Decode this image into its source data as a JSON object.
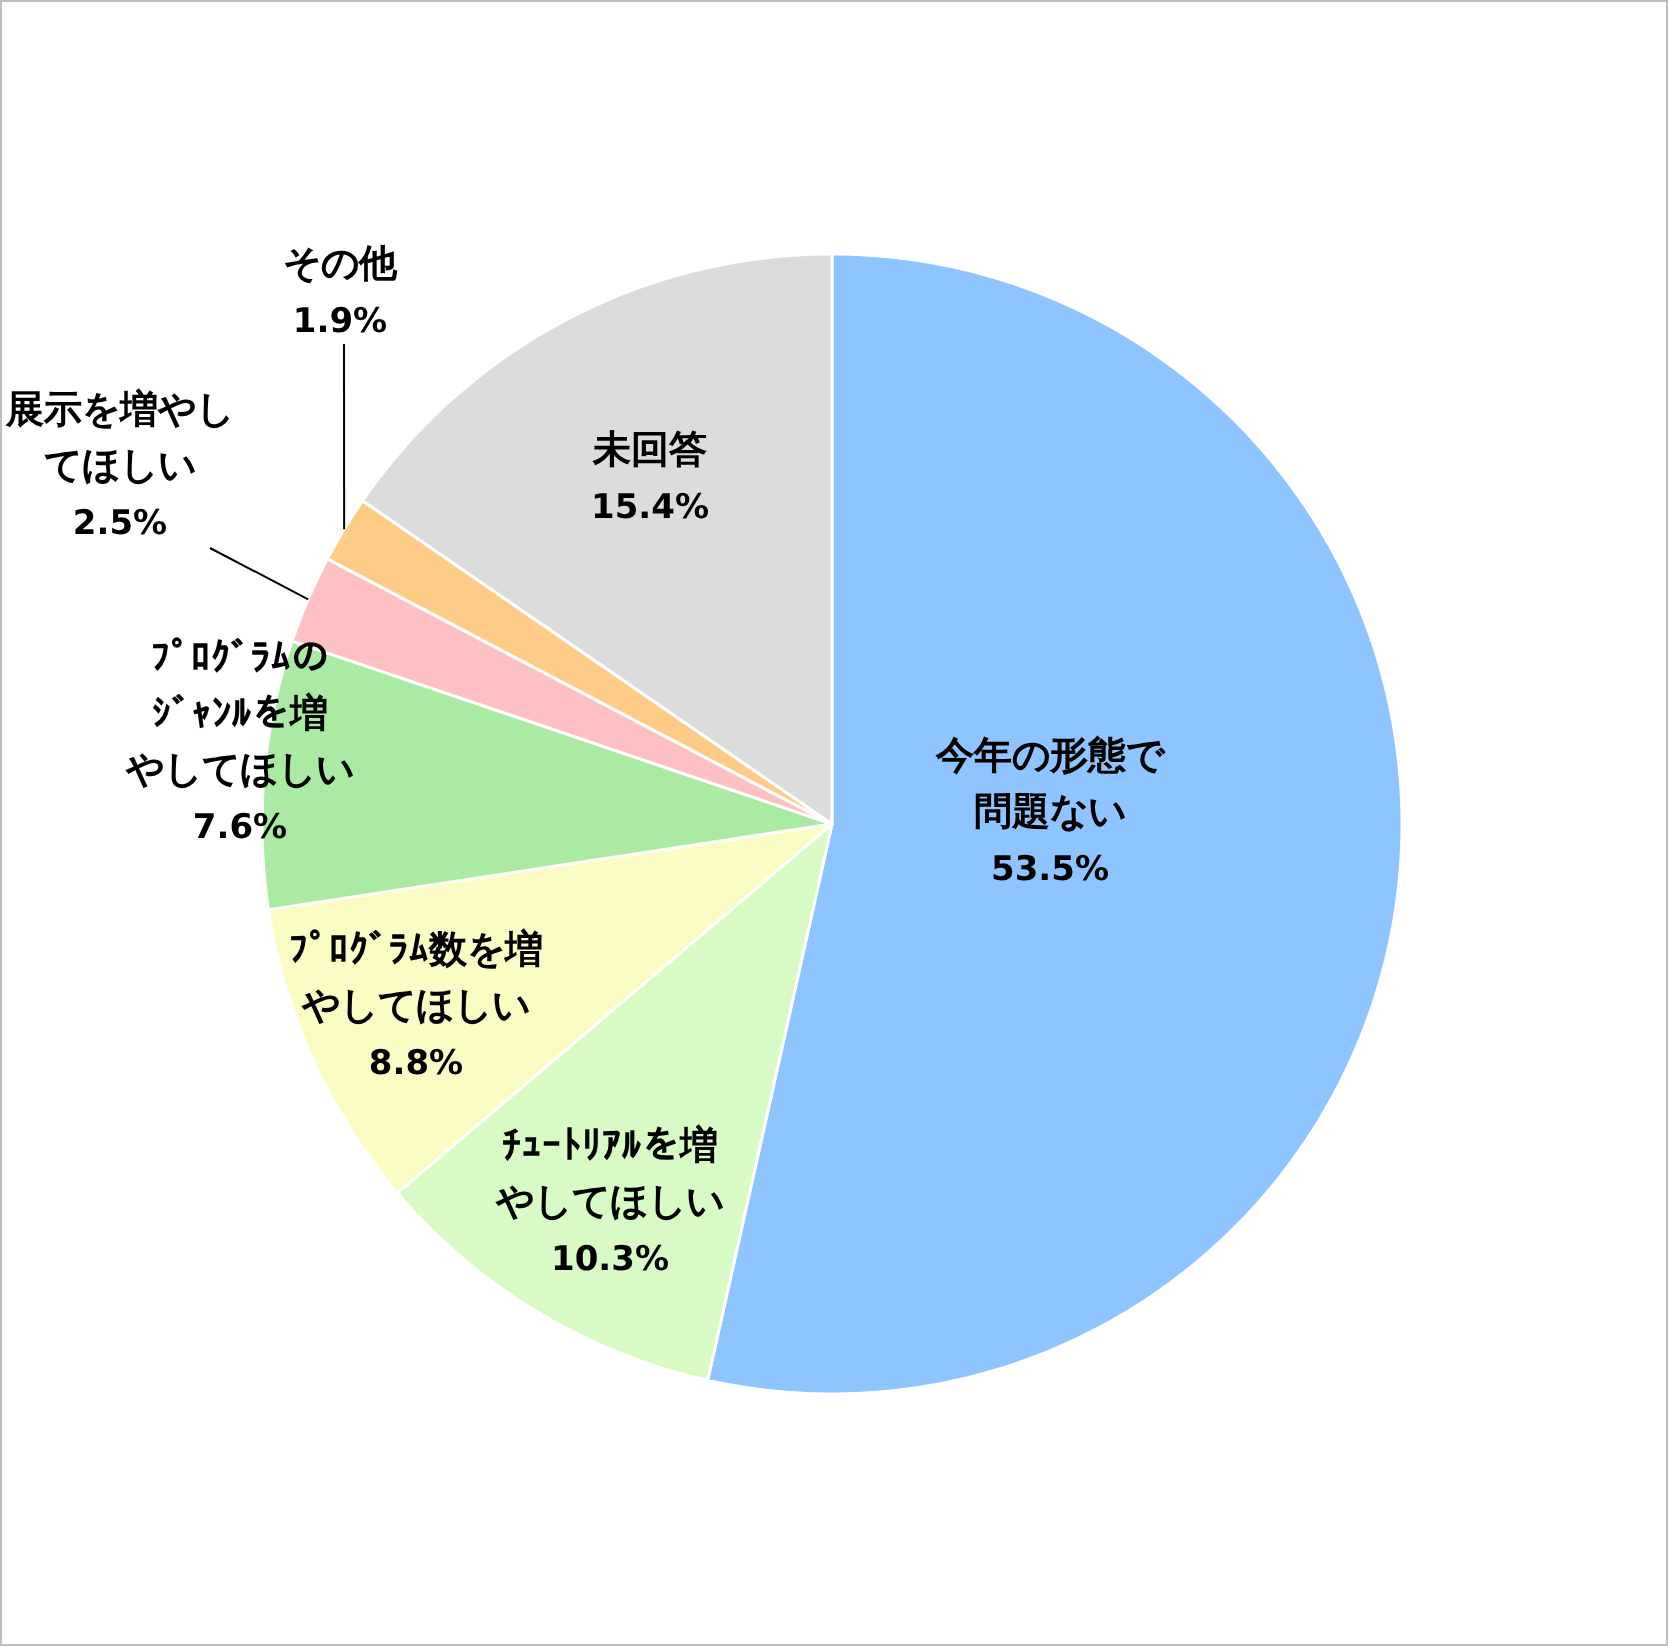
{
  "chart_data": {
    "type": "pie",
    "categories": [
      "今年の形態で問題ない",
      "ﾁｭｰﾄﾘｱﾙを増やしてほしい",
      "ﾌﾟﾛｸﾞﾗﾑ数を増やしてほしい",
      "ﾌﾟﾛｸﾞﾗﾑのｼﾞｬﾝﾙを増やしてほしい",
      "展示を増やしてほしい",
      "その他",
      "未回答"
    ],
    "values": [
      53.5,
      10.3,
      8.8,
      7.6,
      2.5,
      1.9,
      15.4
    ],
    "value_labels": [
      "53.5%",
      "10.3%",
      "8.8%",
      "7.6%",
      "2.5%",
      "1.9%",
      "15.4%"
    ],
    "colors": [
      "#8ec4ff",
      "#d8fac4",
      "#fafcc4",
      "#aaeaa2",
      "#ffc0c4",
      "#ffcc88",
      "#dcdcdc"
    ]
  }
}
